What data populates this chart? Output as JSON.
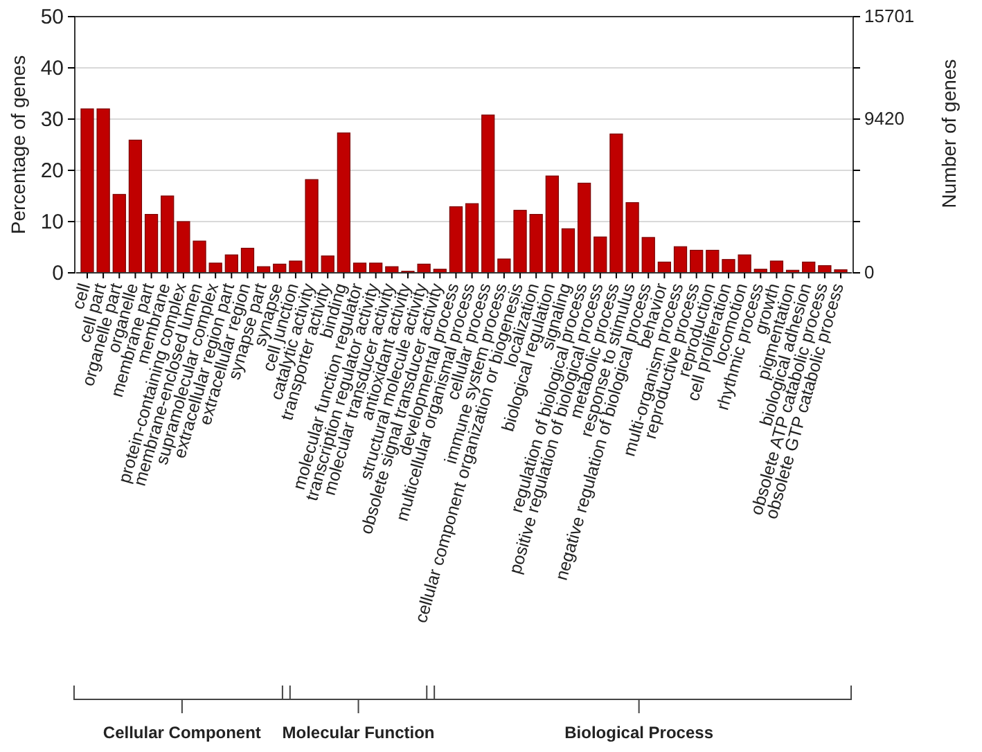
{
  "chart_data": {
    "type": "bar",
    "ylabel": "Percentage of genes",
    "y2label": "Number of genes",
    "categories": [
      "cell",
      "cell part",
      "organelle part",
      "organelle",
      "membrane part",
      "membrane",
      "protein-containing complex",
      "membrane-enclosed lumen",
      "supramolecular complex",
      "extracellular region part",
      "extracellular region",
      "synapse part",
      "synapse",
      "cell junction",
      "catalytic activity",
      "transporter activity",
      "binding",
      "molecular function regulator",
      "transcription regulator activity",
      "molecular transducer activity",
      "antioxidant activity",
      "structural molecule activity",
      "obsolete signal transducer activity",
      "developmental process",
      "multicellular organismal process",
      "cellular process",
      "immune system process",
      "cellular component organization or biogenesis",
      "localization",
      "biological regulation",
      "signaling",
      "regulation of biological process",
      "positive regulation of biological process",
      "metabolic process",
      "response to stimulus",
      "negative regulation of biological process",
      "behavior",
      "multi-organism process",
      "reproductive process",
      "reproduction",
      "cell proliferation",
      "locomotion",
      "rhythmic process",
      "growth",
      "pigmentation",
      "biological adhesion",
      "obsolete ATP catabolic process",
      "obsolete GTP catabolic process"
    ],
    "series": [
      {
        "color": "#c00000",
        "values": [
          32.0,
          32.0,
          15.3,
          25.9,
          11.4,
          15.0,
          10.0,
          6.2,
          1.9,
          3.5,
          4.8,
          1.2,
          1.7,
          2.3,
          18.2,
          3.3,
          27.3,
          1.9,
          1.9,
          1.2,
          0.3,
          1.7,
          0.7,
          12.9,
          13.5,
          30.8,
          2.7,
          12.2,
          11.4,
          18.9,
          8.6,
          17.5,
          7.0,
          27.1,
          13.7,
          6.9,
          2.1,
          5.1,
          4.4,
          4.4,
          2.6,
          3.5,
          0.7,
          2.3,
          0.5,
          2.1,
          1.4,
          0.6
        ]
      }
    ],
    "ylim": [
      0,
      50
    ],
    "yticks": [
      0,
      10,
      20,
      30,
      40,
      50
    ],
    "y2lim": [
      0,
      15701
    ],
    "y2ticks": [
      0,
      {
        "value": 3140.2,
        "label": null
      },
      {
        "value": 6280.4,
        "label": null
      },
      9420,
      {
        "value": 12560.8,
        "label": null
      },
      15701
    ],
    "grid": "y",
    "annotations": [
      "Cellular Component",
      "Molecular Function",
      "Biological Process"
    ]
  }
}
